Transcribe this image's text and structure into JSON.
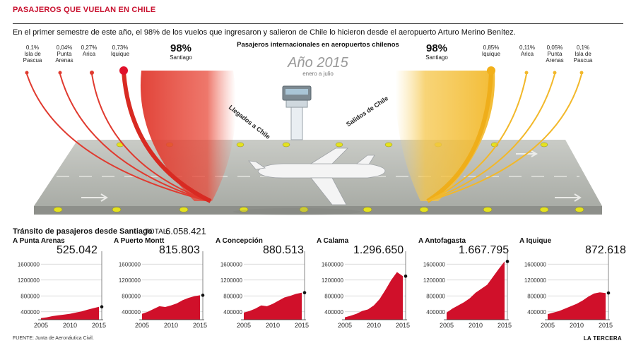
{
  "header": {
    "title": "PASAJEROS QUE VUELAN EN CHILE",
    "intro": "En el primer semestre de este año, el 98% de los vuelos que ingresaron y salieron de Chile lo hicieron desde el aeropuerto Arturo Merino Benítez."
  },
  "infographic": {
    "subtitle": "Pasajeros internacionales en aeropuertos chilenos",
    "year": "Año 2015",
    "period": "enero a julio",
    "arrivals_label": "Llegados a Chile",
    "departures_label": "Salidos de Chile",
    "colors": {
      "arrivals": "#e03a2f",
      "departures": "#f2b82a",
      "chart": "#d0102a"
    },
    "arrivals": [
      {
        "pct": "0,1%",
        "name": "Isla de Pascua"
      },
      {
        "pct": "0,04%",
        "name": "Punta Arenas"
      },
      {
        "pct": "0,27%",
        "name": "Arica"
      },
      {
        "pct": "0,73%",
        "name": "Iquique"
      },
      {
        "pct": "98%",
        "name": "Santiago"
      }
    ],
    "departures": [
      {
        "pct": "98%",
        "name": "Santiago"
      },
      {
        "pct": "0,85%",
        "name": "Iquique"
      },
      {
        "pct": "0,11%",
        "name": "Arica"
      },
      {
        "pct": "0,05%",
        "name": "Punta Arenas"
      },
      {
        "pct": "0,1%",
        "name": "Isla de Pascua"
      }
    ]
  },
  "transit": {
    "title": "Tránsito de pasajeros desde Santiago",
    "total_label": "TOTAL:",
    "total_value": "6.058.421"
  },
  "chart_data": [
    {
      "type": "area",
      "title": "A Punta Arenas",
      "value_label": "525.042",
      "x": [
        2005,
        2006,
        2007,
        2008,
        2009,
        2010,
        2011,
        2012,
        2013,
        2014,
        2015
      ],
      "values": [
        240000,
        260000,
        290000,
        310000,
        330000,
        350000,
        380000,
        410000,
        450000,
        490000,
        525042
      ],
      "ylim": [
        200000,
        1800000
      ],
      "yticks": [
        "400000",
        "800000",
        "1200000",
        "1600000"
      ],
      "xticks": [
        "2005",
        "2010",
        "2015"
      ]
    },
    {
      "type": "area",
      "title": "A Puerto Montt",
      "value_label": "815.803",
      "x": [
        2005,
        2006,
        2007,
        2008,
        2009,
        2010,
        2011,
        2012,
        2013,
        2014,
        2015
      ],
      "values": [
        350000,
        400000,
        470000,
        540000,
        520000,
        560000,
        610000,
        690000,
        750000,
        790000,
        815803
      ],
      "ylim": [
        200000,
        1800000
      ],
      "yticks": [
        "400000",
        "800000",
        "1200000",
        "1600000"
      ],
      "xticks": [
        "2005",
        "2010",
        "2015"
      ]
    },
    {
      "type": "area",
      "title": "A Concepción",
      "value_label": "880.513",
      "x": [
        2005,
        2006,
        2007,
        2008,
        2009,
        2010,
        2011,
        2012,
        2013,
        2014,
        2015
      ],
      "values": [
        380000,
        420000,
        480000,
        560000,
        540000,
        600000,
        680000,
        760000,
        800000,
        850000,
        880513
      ],
      "ylim": [
        200000,
        1800000
      ],
      "yticks": [
        "400000",
        "800000",
        "1200000",
        "1600000"
      ],
      "xticks": [
        "2005",
        "2010",
        "2015"
      ]
    },
    {
      "type": "area",
      "title": "A Calama",
      "value_label": "1.296.650",
      "x": [
        2005,
        2006,
        2007,
        2008,
        2009,
        2010,
        2011,
        2012,
        2013,
        2014,
        2015
      ],
      "values": [
        260000,
        300000,
        350000,
        420000,
        460000,
        560000,
        720000,
        950000,
        1200000,
        1400000,
        1296650
      ],
      "ylim": [
        200000,
        1800000
      ],
      "yticks": [
        "400000",
        "800000",
        "1200000",
        "1600000"
      ],
      "xticks": [
        "2005",
        "2010",
        "2015"
      ]
    },
    {
      "type": "area",
      "title": "A Antofagasta",
      "value_label": "1.667.795",
      "x": [
        2005,
        2006,
        2007,
        2008,
        2009,
        2010,
        2011,
        2012,
        2013,
        2014,
        2015
      ],
      "values": [
        380000,
        480000,
        560000,
        640000,
        740000,
        880000,
        980000,
        1080000,
        1280000,
        1480000,
        1667795
      ],
      "ylim": [
        200000,
        1800000
      ],
      "yticks": [
        "400000",
        "800000",
        "1200000",
        "1600000"
      ],
      "xticks": [
        "2005",
        "2010",
        "2015"
      ]
    },
    {
      "type": "area",
      "title": "A Iquique",
      "value_label": "872.618",
      "x": [
        2005,
        2006,
        2007,
        2008,
        2009,
        2010,
        2011,
        2012,
        2013,
        2014,
        2015
      ],
      "values": [
        340000,
        380000,
        420000,
        480000,
        540000,
        600000,
        680000,
        780000,
        860000,
        890000,
        872618
      ],
      "ylim": [
        200000,
        1800000
      ],
      "yticks": [
        "400000",
        "800000",
        "1200000",
        "1600000"
      ],
      "xticks": [
        "2005",
        "2010",
        "2015"
      ]
    }
  ],
  "footer": {
    "source": "FUENTE: Junta de Aeronáutica Civil.",
    "brand": "LA TERCERA"
  }
}
